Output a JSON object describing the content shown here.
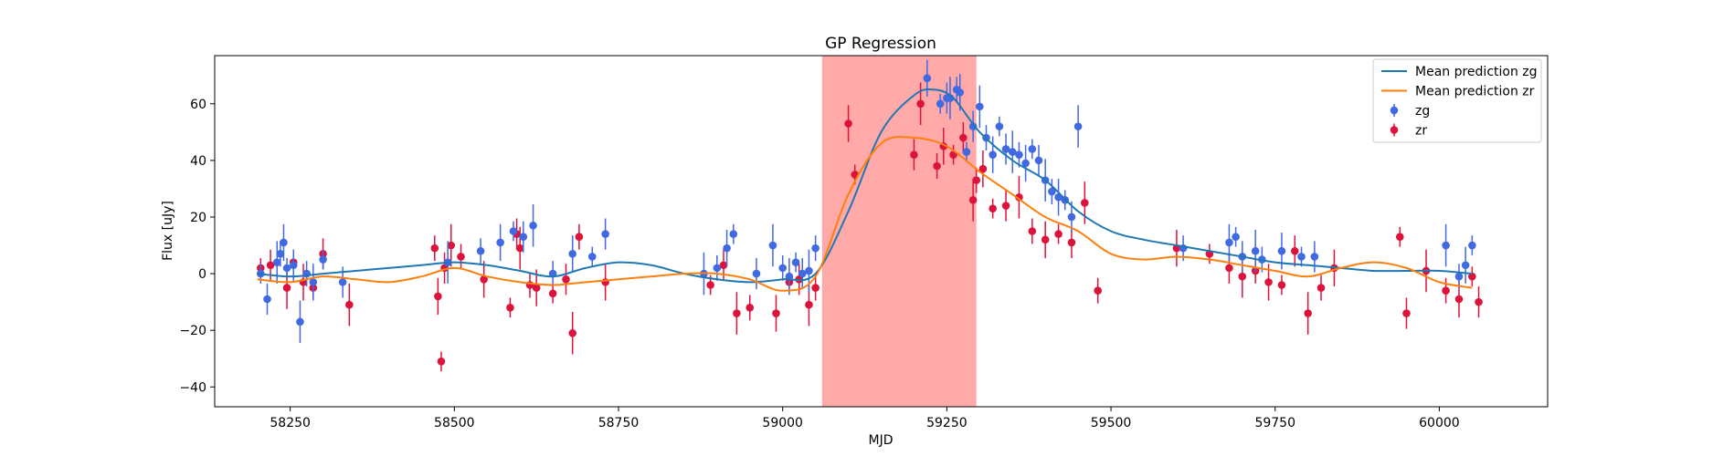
{
  "chart_data": {
    "type": "scatter",
    "title": "GP Regression",
    "xlabel": "MJD",
    "ylabel": "Flux [uJy]",
    "xlim": [
      58135,
      60165
    ],
    "ylim": [
      -47,
      77
    ],
    "xticks": [
      58250,
      58500,
      58750,
      59000,
      59250,
      59500,
      59750,
      60000
    ],
    "yticks": [
      -40,
      -20,
      0,
      20,
      40,
      60
    ],
    "grid": false,
    "legend_position": "top-right",
    "shaded_region": {
      "x_range": [
        59060,
        59295
      ],
      "color": "#ff9a9a"
    },
    "legend": [
      {
        "label": "Mean prediction zg",
        "kind": "line",
        "color": "#1f77b4"
      },
      {
        "label": "Mean prediction zr",
        "kind": "line",
        "color": "#ff7f0e"
      },
      {
        "label": "zg",
        "kind": "errorbar",
        "color": "#4169e1"
      },
      {
        "label": "zr",
        "kind": "errorbar",
        "color": "#dc143c"
      }
    ],
    "series": [
      {
        "name": "Mean prediction zg",
        "kind": "line",
        "color": "#1f77b4",
        "x": [
          58200,
          58250,
          58300,
          58350,
          58400,
          58450,
          58500,
          58550,
          58600,
          58650,
          58700,
          58750,
          58800,
          58850,
          58900,
          58950,
          59000,
          59050,
          59100,
          59150,
          59200,
          59230,
          59260,
          59300,
          59350,
          59400,
          59450,
          59500,
          59550,
          59600,
          59650,
          59700,
          59750,
          59800,
          59850,
          59900,
          59950,
          60000,
          60050
        ],
        "y": [
          0,
          -1,
          0,
          1,
          2,
          3,
          4,
          3,
          1,
          -1,
          2,
          4,
          3,
          0,
          -2,
          -3,
          -2,
          0,
          22,
          50,
          63,
          65,
          62,
          50,
          40,
          33,
          22,
          15,
          12,
          10,
          8,
          6,
          4,
          3,
          2,
          1,
          1,
          1,
          0
        ]
      },
      {
        "name": "Mean prediction zr",
        "kind": "line",
        "color": "#ff7f0e",
        "x": [
          58200,
          58250,
          58300,
          58350,
          58400,
          58450,
          58500,
          58550,
          58600,
          58650,
          58700,
          58750,
          58800,
          58850,
          58900,
          58950,
          59000,
          59050,
          59100,
          59150,
          59200,
          59250,
          59300,
          59350,
          59400,
          59450,
          59500,
          59550,
          59600,
          59650,
          59700,
          59750,
          59800,
          59850,
          59900,
          59950,
          60000,
          60050
        ],
        "y": [
          -2,
          -3,
          -1,
          -2,
          -3,
          -1,
          2,
          -1,
          -3,
          -4,
          -3,
          -2,
          -1,
          0,
          0,
          -2,
          -6,
          -1,
          28,
          46,
          48,
          45,
          36,
          28,
          20,
          15,
          7,
          5,
          6,
          5,
          3,
          1,
          -1,
          2,
          4,
          2,
          -3,
          -5
        ]
      },
      {
        "name": "zg",
        "kind": "errorbar",
        "color": "#4169e1",
        "x": [
          58205,
          58215,
          58230,
          58235,
          58240,
          58245,
          58255,
          58265,
          58275,
          58285,
          58300,
          58330,
          58490,
          58540,
          58570,
          58590,
          58605,
          58620,
          58650,
          58680,
          58710,
          58730,
          58880,
          58900,
          58915,
          58925,
          58960,
          58985,
          59000,
          59010,
          59020,
          59030,
          59040,
          59050,
          59220,
          59240,
          59250,
          59255,
          59265,
          59270,
          59280,
          59290,
          59300,
          59310,
          59320,
          59330,
          59340,
          59350,
          59360,
          59370,
          59380,
          59390,
          59400,
          59410,
          59420,
          59430,
          59440,
          59450,
          59610,
          59680,
          59690,
          59700,
          59720,
          59730,
          59760,
          59790,
          59810,
          60010,
          60030,
          60040,
          60050
        ],
        "y": [
          0,
          -9,
          4,
          7,
          11,
          2,
          3,
          -17,
          0,
          -3,
          5,
          -3,
          4,
          8,
          11,
          15,
          13,
          17,
          0,
          7,
          6,
          14,
          0,
          2,
          9,
          14,
          0,
          10,
          2,
          -1,
          4,
          0,
          1,
          9,
          69,
          60,
          62,
          62,
          65,
          64,
          43,
          52,
          59,
          48,
          42,
          52,
          44,
          43,
          42,
          39,
          44,
          40,
          33,
          29,
          27,
          26,
          20,
          52,
          9,
          11,
          13,
          6,
          8,
          5,
          8,
          6,
          6,
          10,
          -1,
          3,
          10
        ]
      },
      {
        "name": "zr",
        "kind": "errorbar",
        "color": "#dc143c",
        "x": [
          58205,
          58220,
          58245,
          58255,
          58270,
          58285,
          58300,
          58340,
          58470,
          58475,
          58480,
          58485,
          58495,
          58510,
          58545,
          58585,
          58595,
          58600,
          58615,
          58625,
          58650,
          58670,
          58680,
          58690,
          58730,
          58890,
          58910,
          58930,
          58950,
          58990,
          59010,
          59025,
          59040,
          59050,
          59100,
          59110,
          59200,
          59210,
          59235,
          59245,
          59260,
          59275,
          59290,
          59295,
          59305,
          59320,
          59340,
          59360,
          59380,
          59400,
          59420,
          59440,
          59460,
          59480,
          59600,
          59650,
          59680,
          59700,
          59720,
          59740,
          59760,
          59780,
          59800,
          59820,
          59840,
          59940,
          59950,
          59980,
          60010,
          60030,
          60050,
          60060
        ],
        "y": [
          2,
          3,
          -5,
          4,
          -3,
          -5,
          7,
          -11,
          9,
          -8,
          -31,
          2,
          10,
          6,
          -2,
          -12,
          14,
          9,
          -4,
          -5,
          -7,
          -2,
          -21,
          13,
          -3,
          -4,
          3,
          -14,
          -12,
          -14,
          -3,
          -2,
          -11,
          -5,
          53,
          35,
          42,
          60,
          38,
          45,
          42,
          48,
          26,
          33,
          37,
          23,
          24,
          27,
          15,
          12,
          14,
          11,
          25,
          -6,
          9,
          7,
          2,
          -1,
          1,
          -3,
          -4,
          8,
          -14,
          -5,
          2,
          13,
          -14,
          1,
          -6,
          -9,
          -1,
          -10
        ]
      }
    ]
  }
}
